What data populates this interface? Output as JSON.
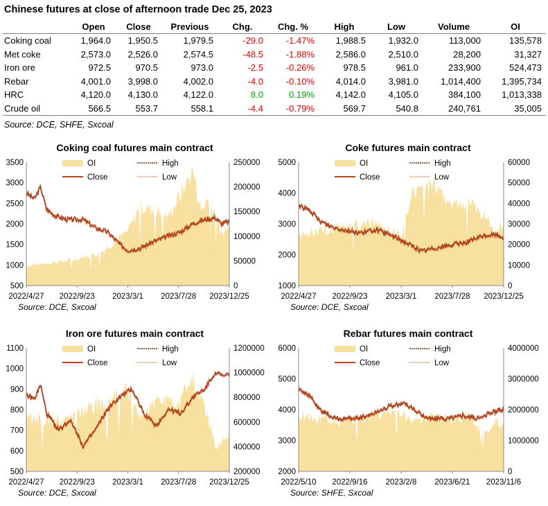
{
  "title": "Chinese futures at close of afternoon trade Dec 25, 2023",
  "table": {
    "columns": [
      "",
      "Open",
      "Close",
      "Previous",
      "Chg.",
      "Chg. %",
      "High",
      "Low",
      "Volume",
      "OI"
    ],
    "rows": [
      {
        "name": "Coking coal",
        "open": "1,964.0",
        "close": "1,950.5",
        "previous": "1,979.5",
        "chg": "-29.0",
        "chg_pct": "-1.47%",
        "high": "1,988.5",
        "low": "1,932.0",
        "volume": "113,000",
        "oi": "135,578"
      },
      {
        "name": "Met coke",
        "open": "2,573.0",
        "close": "2,526.0",
        "previous": "2,574.5",
        "chg": "-48.5",
        "chg_pct": "-1.88%",
        "high": "2,586.0",
        "low": "2,510.0",
        "volume": "28,200",
        "oi": "31,327"
      },
      {
        "name": "Iron ore",
        "open": "972.5",
        "close": "970.5",
        "previous": "973.0",
        "chg": "-2.5",
        "chg_pct": "-0.26%",
        "high": "978.5",
        "low": "961.0",
        "volume": "233,900",
        "oi": "524,473"
      },
      {
        "name": "Rebar",
        "open": "4,001.0",
        "close": "3,998.0",
        "previous": "4,002.0",
        "chg": "-4.0",
        "chg_pct": "-0.10%",
        "high": "4,014.0",
        "low": "3,981.0",
        "volume": "1,014,400",
        "oi": "1,395,734"
      },
      {
        "name": "HRC",
        "open": "4,120.0",
        "close": "4,130.0",
        "previous": "4,122.0",
        "chg": "8.0",
        "chg_pct": "0.19%",
        "high": "4,142.0",
        "low": "4,105.0",
        "volume": "384,100",
        "oi": "1,013,338"
      },
      {
        "name": "Crude oil",
        "open": "566.5",
        "close": "553.7",
        "previous": "558.1",
        "chg": "-4.4",
        "chg_pct": "-0.79%",
        "high": "569.7",
        "low": "540.8",
        "volume": "240,761",
        "oi": "35,005"
      }
    ]
  },
  "source_main": "Source: DCE, SHFE, Sxcoal",
  "colors": {
    "oi_fill": "#f8e0a0",
    "close": "#b5441c",
    "high": "#7a2a12",
    "low": "#f0a070",
    "negative": "#e00000",
    "positive": "#00a000"
  },
  "legend_labels": {
    "oi": "OI",
    "high": "High",
    "close": "Close",
    "low": "Low"
  },
  "chart_data": [
    {
      "type": "area+line",
      "title": "Coking coal futures main contract",
      "source": "Source: DCE, Sxcoal",
      "x_ticks": [
        "2022/4/27",
        "2022/9/23",
        "2023/3/1",
        "2023/7/28",
        "2023/12/25"
      ],
      "y_left": {
        "ticks": [
          500,
          1000,
          1500,
          2000,
          2500,
          3000,
          3500
        ],
        "range": [
          500,
          3500
        ]
      },
      "y_right": {
        "ticks": [
          0,
          50000,
          100000,
          150000,
          200000,
          250000
        ],
        "range": [
          0,
          250000
        ]
      },
      "legend": "top-center",
      "series_close_keypoints": [
        [
          0,
          2750
        ],
        [
          0.04,
          2600
        ],
        [
          0.07,
          2900
        ],
        [
          0.1,
          2350
        ],
        [
          0.14,
          2200
        ],
        [
          0.2,
          2100
        ],
        [
          0.28,
          2100
        ],
        [
          0.34,
          1900
        ],
        [
          0.4,
          1800
        ],
        [
          0.46,
          1500
        ],
        [
          0.5,
          1350
        ],
        [
          0.56,
          1400
        ],
        [
          0.62,
          1550
        ],
        [
          0.7,
          1700
        ],
        [
          0.76,
          1800
        ],
        [
          0.82,
          2000
        ],
        [
          0.88,
          2100
        ],
        [
          0.93,
          2150
        ],
        [
          0.96,
          2000
        ],
        [
          1,
          2050
        ]
      ],
      "series_oi_keypoints": [
        [
          0,
          40000
        ],
        [
          0.2,
          50000
        ],
        [
          0.36,
          65000
        ],
        [
          0.5,
          110000
        ],
        [
          0.56,
          160000
        ],
        [
          0.65,
          150000
        ],
        [
          0.7,
          140000
        ],
        [
          0.78,
          200000
        ],
        [
          0.82,
          235000
        ],
        [
          0.86,
          150000
        ],
        [
          0.9,
          180000
        ],
        [
          0.94,
          130000
        ],
        [
          0.97,
          100000
        ],
        [
          1,
          135578
        ]
      ]
    },
    {
      "type": "area+line",
      "title": "Coke futures main contract",
      "source": "Source: DCE, Sxcoal",
      "x_ticks": [
        "2022/4/27",
        "2022/9/23",
        "2023/3/1",
        "2023/7/28",
        "2023/12/25"
      ],
      "y_left": {
        "ticks": [
          1000,
          2000,
          3000,
          4000,
          5000
        ],
        "range": [
          1000,
          5000
        ]
      },
      "y_right": {
        "ticks": [
          0,
          10000,
          20000,
          30000,
          40000,
          50000,
          60000
        ],
        "range": [
          0,
          60000
        ]
      },
      "legend": "top-center",
      "series_close_keypoints": [
        [
          0,
          3600
        ],
        [
          0.06,
          3400
        ],
        [
          0.1,
          3100
        ],
        [
          0.16,
          2900
        ],
        [
          0.22,
          2800
        ],
        [
          0.3,
          2700
        ],
        [
          0.38,
          2800
        ],
        [
          0.46,
          2600
        ],
        [
          0.52,
          2400
        ],
        [
          0.6,
          2100
        ],
        [
          0.66,
          2200
        ],
        [
          0.74,
          2300
        ],
        [
          0.82,
          2400
        ],
        [
          0.9,
          2600
        ],
        [
          0.96,
          2650
        ],
        [
          1,
          2550
        ]
      ],
      "series_oi_keypoints": [
        [
          0,
          25000
        ],
        [
          0.2,
          28000
        ],
        [
          0.36,
          30000
        ],
        [
          0.5,
          25000
        ],
        [
          0.56,
          45000
        ],
        [
          0.66,
          50000
        ],
        [
          0.74,
          40000
        ],
        [
          0.84,
          40000
        ],
        [
          0.9,
          35000
        ],
        [
          0.96,
          25000
        ],
        [
          1,
          31327
        ]
      ]
    },
    {
      "type": "area+line",
      "title": "Iron ore futures main contract",
      "source": "Source: DCE, Sxcoal",
      "x_ticks": [
        "2022/4/27",
        "2022/9/23",
        "2023/3/1",
        "2023/7/28",
        "2023/12/25"
      ],
      "y_left": {
        "ticks": [
          500,
          600,
          700,
          800,
          900,
          1000,
          1100
        ],
        "range": [
          500,
          1100
        ]
      },
      "y_right": {
        "ticks": [
          200000,
          400000,
          600000,
          800000,
          1000000,
          1200000
        ],
        "range": [
          200000,
          1200000
        ]
      },
      "legend": "top-center",
      "series_close_keypoints": [
        [
          0,
          870
        ],
        [
          0.04,
          850
        ],
        [
          0.07,
          920
        ],
        [
          0.1,
          780
        ],
        [
          0.16,
          700
        ],
        [
          0.22,
          750
        ],
        [
          0.28,
          620
        ],
        [
          0.34,
          700
        ],
        [
          0.4,
          800
        ],
        [
          0.46,
          860
        ],
        [
          0.52,
          900
        ],
        [
          0.58,
          780
        ],
        [
          0.64,
          720
        ],
        [
          0.7,
          800
        ],
        [
          0.76,
          780
        ],
        [
          0.82,
          860
        ],
        [
          0.88,
          900
        ],
        [
          0.93,
          980
        ],
        [
          0.97,
          960
        ],
        [
          1,
          970
        ]
      ],
      "series_oi_keypoints": [
        [
          0,
          620000
        ],
        [
          0.2,
          600000
        ],
        [
          0.36,
          750000
        ],
        [
          0.5,
          850000
        ],
        [
          0.56,
          650000
        ],
        [
          0.66,
          800000
        ],
        [
          0.74,
          720000
        ],
        [
          0.82,
          950000
        ],
        [
          0.88,
          700000
        ],
        [
          0.94,
          380000
        ],
        [
          1,
          524473
        ]
      ]
    },
    {
      "type": "area+line",
      "title": "Rebar futures main contract",
      "source": "Source: SHFE, Sxcoal",
      "x_ticks": [
        "2022/5/10",
        "2022/9/16",
        "2023/2/8",
        "2023/6/21",
        "2023/11/6"
      ],
      "y_left": {
        "ticks": [
          2000,
          3000,
          4000,
          5000,
          6000
        ],
        "range": [
          2000,
          6000
        ]
      },
      "y_right": {
        "ticks": [
          0,
          1000000,
          2000000,
          3000000,
          4000000
        ],
        "range": [
          0,
          4000000
        ]
      },
      "legend": "top-center",
      "series_close_keypoints": [
        [
          0,
          4700
        ],
        [
          0.06,
          4400
        ],
        [
          0.1,
          4000
        ],
        [
          0.18,
          3700
        ],
        [
          0.26,
          3700
        ],
        [
          0.34,
          3800
        ],
        [
          0.44,
          4100
        ],
        [
          0.52,
          4200
        ],
        [
          0.58,
          3900
        ],
        [
          0.64,
          3700
        ],
        [
          0.72,
          3700
        ],
        [
          0.8,
          3800
        ],
        [
          0.88,
          3700
        ],
        [
          0.94,
          3900
        ],
        [
          1,
          4000
        ]
      ],
      "series_oi_keypoints": [
        [
          0,
          1800000
        ],
        [
          0.2,
          1600000
        ],
        [
          0.36,
          1800000
        ],
        [
          0.5,
          1900000
        ],
        [
          0.56,
          1600000
        ],
        [
          0.66,
          1800000
        ],
        [
          0.74,
          1700000
        ],
        [
          0.84,
          1800000
        ],
        [
          0.9,
          1200000
        ],
        [
          0.96,
          1600000
        ],
        [
          1,
          1395734
        ]
      ]
    }
  ]
}
